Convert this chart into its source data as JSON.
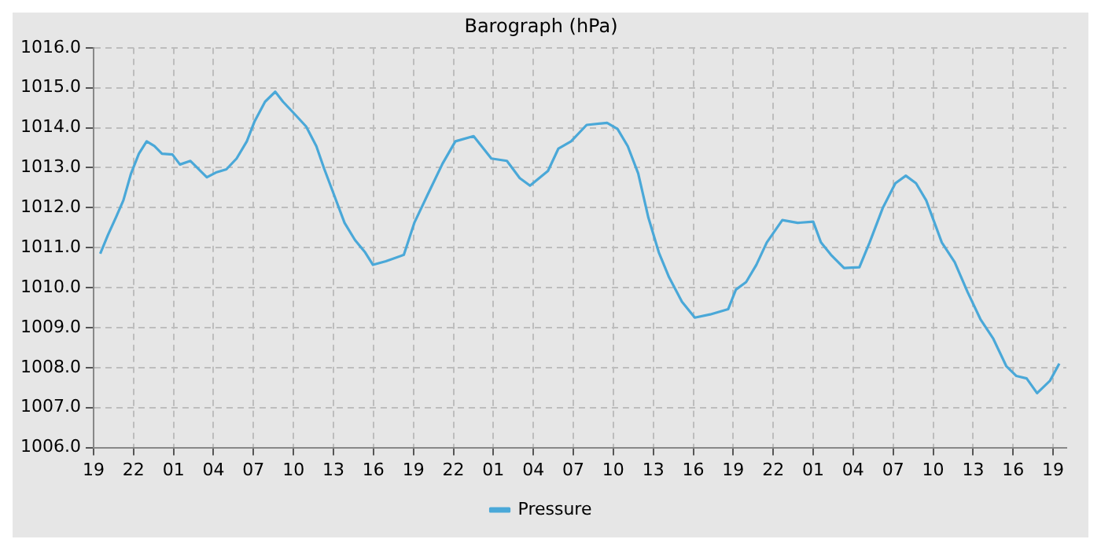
{
  "chart_data": {
    "type": "line",
    "title": "Barograph (hPa)",
    "x": [
      "--01-01T19:30",
      "--01-01T20:05",
      "--01-01T20:40",
      "--01-01T21:14",
      "--01-01T21:49",
      "--01-01T22:24",
      "--01-01T22:59",
      "--01-01T23:34",
      "--01-02T00:08",
      "--01-02T00:55",
      "--01-02T01:29",
      "--01-02T02:16",
      "--01-02T02:50",
      "--01-02T03:30",
      "--01-02T04:11",
      "--01-02T04:58",
      "--01-02T05:44",
      "--01-02T06:30",
      "--01-02T07:05",
      "--01-02T07:52",
      "--01-02T08:38",
      "--01-02T09:13",
      "--01-02T09:59",
      "--01-02T10:57",
      "--01-02T11:43",
      "--01-02T12:18",
      "--01-02T13:04",
      "--01-02T13:50",
      "--01-02T14:37",
      "--01-02T15:23",
      "--01-02T15:58",
      "--01-02T16:56",
      "--01-02T18:17",
      "--01-02T19:04",
      "--01-02T20:02",
      "--01-02T21:11",
      "--01-02T22:09",
      "--01-02T23:31",
      "--01-03T00:51",
      "--01-03T02:01",
      "--01-03T02:59",
      "--01-03T03:45",
      "--01-03T05:06",
      "--01-03T05:53",
      "--01-03T06:50",
      "--01-03T08:00",
      "--01-03T09:32",
      "--01-03T10:19",
      "--01-03T11:05",
      "--01-03T11:52",
      "--01-03T12:38",
      "--01-03T13:25",
      "--01-03T14:11",
      "--01-03T15:09",
      "--01-03T16:07",
      "--01-03T17:16",
      "--01-03T18:37",
      "--01-03T19:12",
      "--01-03T19:58",
      "--01-03T20:44",
      "--01-03T21:31",
      "--01-03T22:41",
      "--01-03T23:50",
      "--01-04T01:00",
      "--01-04T01:35",
      "--01-04T02:20",
      "--01-04T03:19",
      "--01-04T04:28",
      "--01-04T05:14",
      "--01-04T06:13",
      "--01-04T07:10",
      "--01-04T07:57",
      "--01-04T08:43",
      "--01-04T09:29",
      "--01-04T10:39",
      "--01-04T11:37",
      "--01-04T12:35",
      "--01-04T13:33",
      "--01-04T14:31",
      "--01-04T15:29",
      "--01-04T16:15",
      "--01-04T17:01",
      "--01-04T17:48",
      "--01-04T18:46",
      "--01-04T19:28"
    ],
    "series": [
      {
        "name": "Pressure",
        "color": "#4aa8d8",
        "values": [
          1010.85,
          1011.32,
          1011.75,
          1012.18,
          1012.86,
          1013.35,
          1013.66,
          1013.54,
          1013.35,
          1013.33,
          1013.08,
          1013.17,
          1012.98,
          1012.76,
          1012.88,
          1012.96,
          1013.23,
          1013.66,
          1014.16,
          1014.65,
          1014.9,
          1014.65,
          1014.38,
          1014.03,
          1013.54,
          1012.98,
          1012.3,
          1011.62,
          1011.19,
          1010.88,
          1010.57,
          1010.66,
          1010.82,
          1011.62,
          1012.3,
          1013.1,
          1013.66,
          1013.79,
          1013.23,
          1013.17,
          1012.74,
          1012.55,
          1012.92,
          1013.48,
          1013.66,
          1014.07,
          1014.12,
          1013.97,
          1013.54,
          1012.86,
          1011.75,
          1010.88,
          1010.26,
          1009.65,
          1009.25,
          1009.33,
          1009.46,
          1009.95,
          1010.14,
          1010.57,
          1011.13,
          1011.69,
          1011.62,
          1011.65,
          1011.13,
          1010.82,
          1010.49,
          1010.51,
          1011.13,
          1011.99,
          1012.61,
          1012.8,
          1012.61,
          1012.18,
          1011.13,
          1010.64,
          1009.89,
          1009.21,
          1008.72,
          1008.04,
          1007.79,
          1007.73,
          1007.36,
          1007.67,
          1008.1
        ]
      }
    ],
    "xlim": [
      "--01-01T19:00",
      "--01-04T20:00"
    ],
    "xticks": [
      {
        "value": "--01-01T19:00",
        "label": "19"
      },
      {
        "value": "--01-01T22:00",
        "label": "22"
      },
      {
        "value": "--01-02T01:00",
        "label": "01"
      },
      {
        "value": "--01-02T04:00",
        "label": "04"
      },
      {
        "value": "--01-02T07:00",
        "label": "07"
      },
      {
        "value": "--01-02T10:00",
        "label": "10"
      },
      {
        "value": "--01-02T13:00",
        "label": "13"
      },
      {
        "value": "--01-02T16:00",
        "label": "16"
      },
      {
        "value": "--01-02T19:00",
        "label": "19"
      },
      {
        "value": "--01-02T22:00",
        "label": "22"
      },
      {
        "value": "--01-03T01:00",
        "label": "01"
      },
      {
        "value": "--01-03T04:00",
        "label": "04"
      },
      {
        "value": "--01-03T07:00",
        "label": "07"
      },
      {
        "value": "--01-03T10:00",
        "label": "10"
      },
      {
        "value": "--01-03T13:00",
        "label": "13"
      },
      {
        "value": "--01-03T16:00",
        "label": "16"
      },
      {
        "value": "--01-03T19:00",
        "label": "19"
      },
      {
        "value": "--01-03T22:00",
        "label": "22"
      },
      {
        "value": "--01-04T01:00",
        "label": "01"
      },
      {
        "value": "--01-04T04:00",
        "label": "04"
      },
      {
        "value": "--01-04T07:00",
        "label": "07"
      },
      {
        "value": "--01-04T10:00",
        "label": "10"
      },
      {
        "value": "--01-04T13:00",
        "label": "13"
      },
      {
        "value": "--01-04T16:00",
        "label": "16"
      },
      {
        "value": "--01-04T19:00",
        "label": "19"
      }
    ],
    "ylim": [
      1006,
      1016
    ],
    "yticks": [
      {
        "value": 1006,
        "label": "1006.0"
      },
      {
        "value": 1007,
        "label": "1007.0"
      },
      {
        "value": 1008,
        "label": "1008.0"
      },
      {
        "value": 1009,
        "label": "1009.0"
      },
      {
        "value": 1010,
        "label": "1010.0"
      },
      {
        "value": 1011,
        "label": "1011.0"
      },
      {
        "value": 1012,
        "label": "1012.0"
      },
      {
        "value": 1013,
        "label": "1013.0"
      },
      {
        "value": 1014,
        "label": "1014.0"
      },
      {
        "value": 1015,
        "label": "1015.0"
      },
      {
        "value": 1016,
        "label": "1016.0"
      }
    ],
    "grid": true,
    "legend": "bottom",
    "marker": "none",
    "line_style": "solid"
  }
}
